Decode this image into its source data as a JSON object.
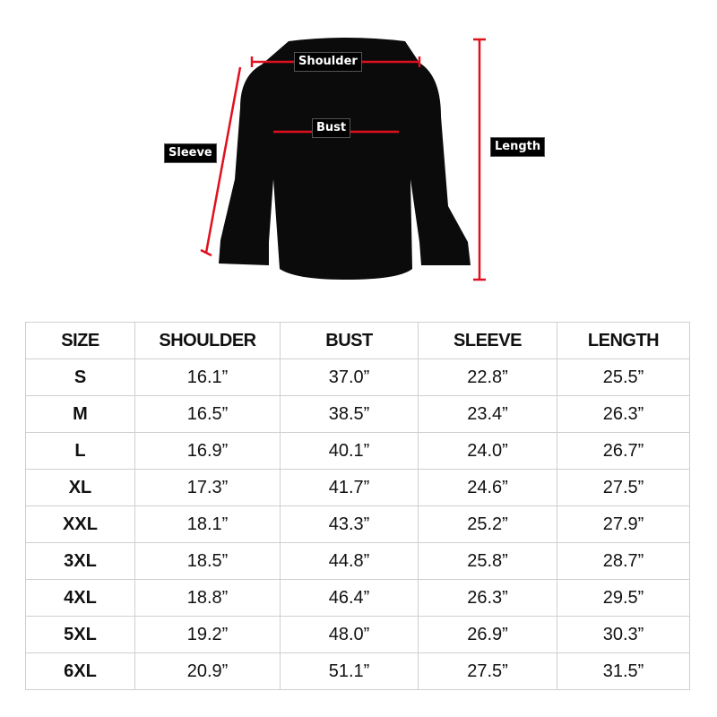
{
  "diagram": {
    "labels": {
      "shoulder": "Shoulder",
      "bust": "Bust",
      "sleeve": "Sleeve",
      "length": "Length"
    },
    "garment_color": "#0b0b0b",
    "measure_line_color": "#e0101e"
  },
  "table": {
    "headers": [
      "SIZE",
      "SHOULDER",
      "BUST",
      "SLEEVE",
      "LENGTH"
    ],
    "rows": [
      [
        "S",
        "16.1”",
        "37.0”",
        "22.8”",
        "25.5”"
      ],
      [
        "M",
        "16.5”",
        "38.5”",
        "23.4”",
        "26.3”"
      ],
      [
        "L",
        "16.9”",
        "40.1”",
        "24.0”",
        "26.7”"
      ],
      [
        "XL",
        "17.3”",
        "41.7”",
        "24.6”",
        "27.5”"
      ],
      [
        "XXL",
        "18.1”",
        "43.3”",
        "25.2”",
        "27.9”"
      ],
      [
        "3XL",
        "18.5”",
        "44.8”",
        "25.8”",
        "28.7”"
      ],
      [
        "4XL",
        "18.8”",
        "46.4”",
        "26.3”",
        "29.5”"
      ],
      [
        "5XL",
        "19.2”",
        "48.0”",
        "26.9”",
        "30.3”"
      ],
      [
        "6XL",
        "20.9”",
        "51.1”",
        "27.5”",
        "31.5”"
      ]
    ]
  }
}
